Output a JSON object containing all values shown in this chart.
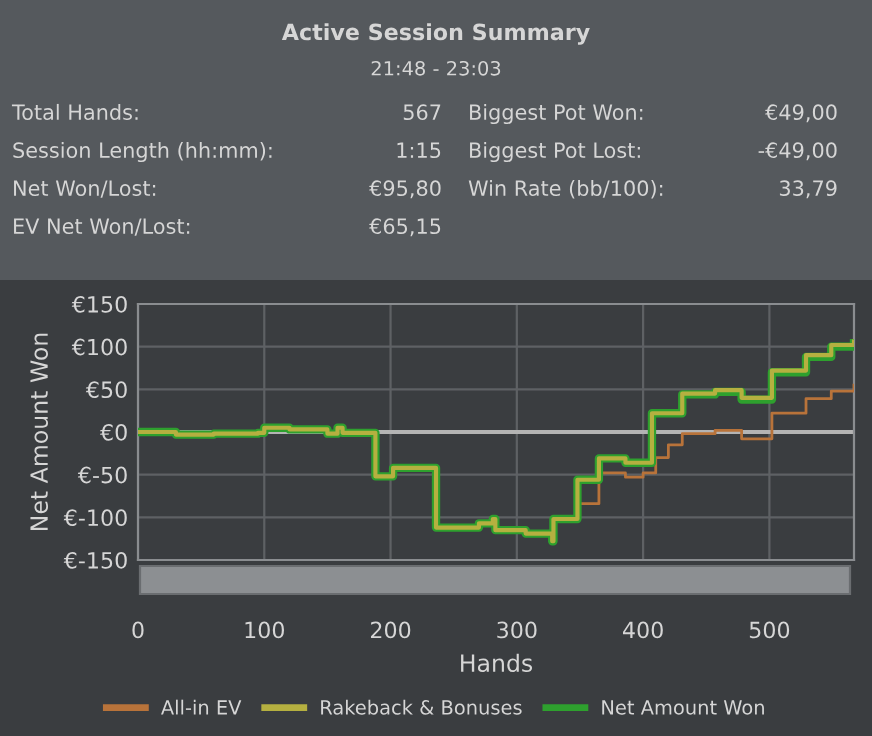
{
  "chart_data": [
    {
      "type": "other",
      "title": "Active Session Summary",
      "subtitle": "21:48 - 23:03",
      "annotations": [
        "Total Hands:",
        "567",
        "Biggest Pot Won:",
        "€49,00",
        "Session Length (hh:mm):",
        "1:15",
        "Biggest Pot Lost:",
        "-€49,00",
        "Net Won/Lost:",
        "€95,80",
        "Win Rate (bb/100):",
        "33,79",
        "EV Net Won/Lost:",
        "€65,15"
      ]
    },
    {
      "type": "step",
      "xlabel": "Hands",
      "ylabel": "Net Amount Won",
      "xlim": [
        0,
        567
      ],
      "xticks": [
        0,
        100,
        200,
        300,
        400,
        500
      ],
      "ylim": [
        -150,
        150
      ],
      "yticks": [
        {
          "value": -150,
          "label": "€-150"
        },
        {
          "value": -100,
          "label": "€-100"
        },
        {
          "value": -50,
          "label": "€-50"
        },
        {
          "value": 0,
          "label": "€0"
        },
        {
          "value": 50,
          "label": "€50"
        },
        {
          "value": 100,
          "label": "€100"
        },
        {
          "value": 150,
          "label": "€150"
        }
      ],
      "grid": true,
      "legend": "bottom",
      "ref_lines": [
        {
          "axis": "y",
          "value": 0,
          "color": "#b4b4b4"
        }
      ],
      "series": [
        {
          "name": "All-in EV",
          "color": "#b8733a",
          "x": [
            348,
            365,
            386,
            400,
            410,
            420,
            431,
            457,
            478,
            502,
            529,
            549,
            567
          ],
          "values": [
            -84,
            -48,
            -53,
            -48,
            -30,
            -15,
            -2,
            2,
            -8,
            22,
            39,
            48,
            55
          ]
        },
        {
          "name": "Rakeback & Bonuses",
          "color": "#b5b040",
          "x": [
            0,
            30,
            60,
            95,
            100,
            120,
            150,
            158,
            162,
            188,
            202,
            236,
            270,
            281,
            283,
            307,
            328,
            329,
            348,
            365,
            386,
            407,
            431,
            457,
            478,
            502,
            529,
            549,
            567
          ],
          "values": [
            0,
            -3,
            -2,
            -1,
            5,
            3,
            -2,
            5,
            -1,
            -52,
            -42,
            -112,
            -107,
            -102,
            -115,
            -119,
            -128,
            -102,
            -56,
            -31,
            -36,
            22,
            45,
            49,
            40,
            72,
            90,
            102,
            106
          ]
        },
        {
          "name": "Net Amount Won",
          "color": "#2ea02e",
          "x": [
            0,
            30,
            60,
            95,
            100,
            120,
            150,
            158,
            162,
            188,
            202,
            236,
            270,
            281,
            283,
            307,
            328,
            329,
            348,
            365,
            386,
            407,
            431,
            457,
            478,
            502,
            529,
            549,
            567
          ],
          "values": [
            0,
            -3,
            -2,
            -1,
            5,
            3,
            -2,
            5,
            -1,
            -52,
            -42,
            -112,
            -107,
            -102,
            -115,
            -119,
            -128,
            -102,
            -56,
            -31,
            -36,
            22,
            44,
            47,
            38,
            70,
            88,
            100,
            104
          ]
        }
      ]
    }
  ]
}
